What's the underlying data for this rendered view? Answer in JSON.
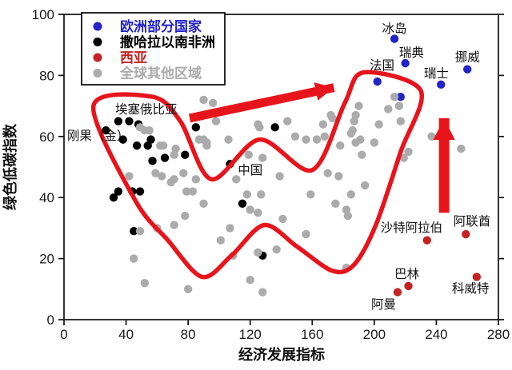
{
  "chart_data": {
    "type": "scatter",
    "title": "",
    "xlabel": "经济发展指标",
    "ylabel": "绿色低碳指数",
    "xlim": [
      0,
      280
    ],
    "ylim": [
      0,
      100
    ],
    "xticks": [
      0,
      40,
      80,
      120,
      160,
      200,
      240,
      280
    ],
    "yticks": [
      0,
      20,
      40,
      60,
      80,
      100
    ],
    "grid": false,
    "legend_position": "top-left",
    "series": [
      {
        "name": "欧洲部分国家",
        "color": "#2323C8",
        "points": [
          [
            213,
            92
          ],
          [
            220,
            84
          ],
          [
            202,
            78
          ],
          [
            217,
            73
          ],
          [
            243,
            77
          ],
          [
            260,
            82
          ]
        ]
      },
      {
        "name": "撒哈拉以南非洲",
        "color": "#000000",
        "points": [
          [
            27,
            62
          ],
          [
            35,
            65
          ],
          [
            42,
            65
          ],
          [
            38,
            59
          ],
          [
            48,
            64
          ],
          [
            47,
            57
          ],
          [
            54,
            57
          ],
          [
            56,
            59
          ],
          [
            57,
            52
          ],
          [
            65,
            53
          ],
          [
            78,
            54
          ],
          [
            85,
            63
          ],
          [
            35,
            42
          ],
          [
            32,
            40
          ],
          [
            44,
            42
          ],
          [
            49,
            42
          ],
          [
            107,
            51
          ],
          [
            115,
            38
          ],
          [
            136,
            63
          ],
          [
            45,
            29
          ],
          [
            128,
            21
          ]
        ]
      },
      {
        "name": "西亚",
        "color": "#C52222",
        "points": [
          [
            234,
            26
          ],
          [
            259,
            28
          ],
          [
            215,
            9
          ],
          [
            222,
            11
          ],
          [
            266,
            14
          ]
        ]
      },
      {
        "name": "全球其他区域",
        "color": "#ABABAB",
        "points": [
          [
            49,
            63
          ],
          [
            52,
            62
          ],
          [
            55,
            62
          ],
          [
            62,
            57
          ],
          [
            64,
            57
          ],
          [
            72,
            56
          ],
          [
            71,
            54
          ],
          [
            87,
            59
          ],
          [
            90,
            59
          ],
          [
            92,
            57
          ],
          [
            59,
            48
          ],
          [
            42,
            47
          ],
          [
            63,
            47
          ],
          [
            71,
            46
          ],
          [
            69,
            45
          ],
          [
            77,
            48
          ],
          [
            85,
            46
          ],
          [
            79,
            42
          ],
          [
            83,
            42
          ],
          [
            90,
            72
          ],
          [
            96,
            71
          ],
          [
            98,
            65
          ],
          [
            106,
            59
          ],
          [
            92,
            58
          ],
          [
            119,
            54
          ],
          [
            125,
            64
          ],
          [
            126,
            63
          ],
          [
            144,
            65
          ],
          [
            128,
            53
          ],
          [
            139,
            47
          ],
          [
            111,
            46
          ],
          [
            118,
            41
          ],
          [
            127,
            41
          ],
          [
            141,
            33
          ],
          [
            156,
            28
          ],
          [
            107,
            30
          ],
          [
            120,
            36
          ],
          [
            125,
            35
          ],
          [
            90,
            38
          ],
          [
            101,
            26
          ],
          [
            109,
            21
          ],
          [
            125,
            22
          ],
          [
            137,
            23
          ],
          [
            120,
            13
          ],
          [
            128,
            9
          ],
          [
            149,
            60
          ],
          [
            156,
            59
          ],
          [
            163,
            59
          ],
          [
            168,
            60
          ],
          [
            172,
            67
          ],
          [
            173,
            66
          ],
          [
            167,
            64
          ],
          [
            178,
            57
          ],
          [
            185,
            61
          ],
          [
            187,
            65
          ],
          [
            186,
            62
          ],
          [
            192,
            54
          ],
          [
            170,
            48
          ],
          [
            177,
            47
          ],
          [
            159,
            41
          ],
          [
            175,
            38
          ],
          [
            185,
            41
          ],
          [
            182,
            17
          ],
          [
            190,
            70
          ],
          [
            188,
            67
          ],
          [
            203,
            64
          ],
          [
            209,
            69
          ],
          [
            213,
            73
          ],
          [
            217,
            65
          ],
          [
            216,
            70
          ],
          [
            200,
            58
          ],
          [
            188,
            58
          ],
          [
            191,
            59
          ],
          [
            237,
            60
          ],
          [
            256,
            56
          ],
          [
            222,
            55
          ],
          [
            219,
            53
          ],
          [
            194,
            44
          ],
          [
            182,
            36
          ],
          [
            183,
            34
          ],
          [
            78,
            34
          ],
          [
            71,
            31
          ],
          [
            60,
            30
          ],
          [
            49,
            29
          ],
          [
            45,
            20
          ],
          [
            52,
            12
          ],
          [
            80,
            10
          ]
        ]
      }
    ],
    "point_labels": [
      {
        "text": "冰岛",
        "x": 213,
        "y": 95.3
      },
      {
        "text": "瑞典",
        "x": 224,
        "y": 87.4
      },
      {
        "text": "挪威",
        "x": 260,
        "y": 86.0
      },
      {
        "text": "瑞士",
        "x": 240,
        "y": 80.6
      },
      {
        "text": "法国",
        "x": 205,
        "y": 83.2
      },
      {
        "text": "埃塞俄比亚",
        "x": 53,
        "y": 68.8
      },
      {
        "text": "刚果（金）",
        "x": 22,
        "y": 60.2
      },
      {
        "text": "中国",
        "x": 120,
        "y": 49.0
      },
      {
        "text": "沙特阿拉伯",
        "x": 224,
        "y": 30.1
      },
      {
        "text": "阿联酋",
        "x": 263,
        "y": 32.2
      },
      {
        "text": "巴林",
        "x": 221,
        "y": 14.9
      },
      {
        "text": "科威特",
        "x": 262,
        "y": 10.2
      },
      {
        "text": "阿曼",
        "x": 206,
        "y": 5.0
      }
    ],
    "annotations": {
      "color": "#E8141C",
      "band_outline_points": [
        [
          19,
          70
        ],
        [
          57,
          73
        ],
        [
          75,
          65
        ],
        [
          95,
          46
        ],
        [
          126,
          59
        ],
        [
          160,
          49
        ],
        [
          181,
          71
        ],
        [
          193,
          81
        ],
        [
          230,
          75
        ],
        [
          217,
          55
        ],
        [
          201,
          31
        ],
        [
          187,
          18
        ],
        [
          173,
          16
        ],
        [
          150,
          24
        ],
        [
          129,
          31
        ],
        [
          108,
          21
        ],
        [
          89,
          14
        ],
        [
          67,
          26
        ],
        [
          46,
          39
        ]
      ],
      "arrows": [
        {
          "name": "trend-arrow-diagonal",
          "from": [
            81,
            66
          ],
          "to": [
            174,
            76
          ],
          "width": 11
        },
        {
          "name": "trend-arrow-vertical",
          "from": [
            245,
            35
          ],
          "to": [
            245,
            66
          ],
          "width": 13
        }
      ]
    }
  }
}
